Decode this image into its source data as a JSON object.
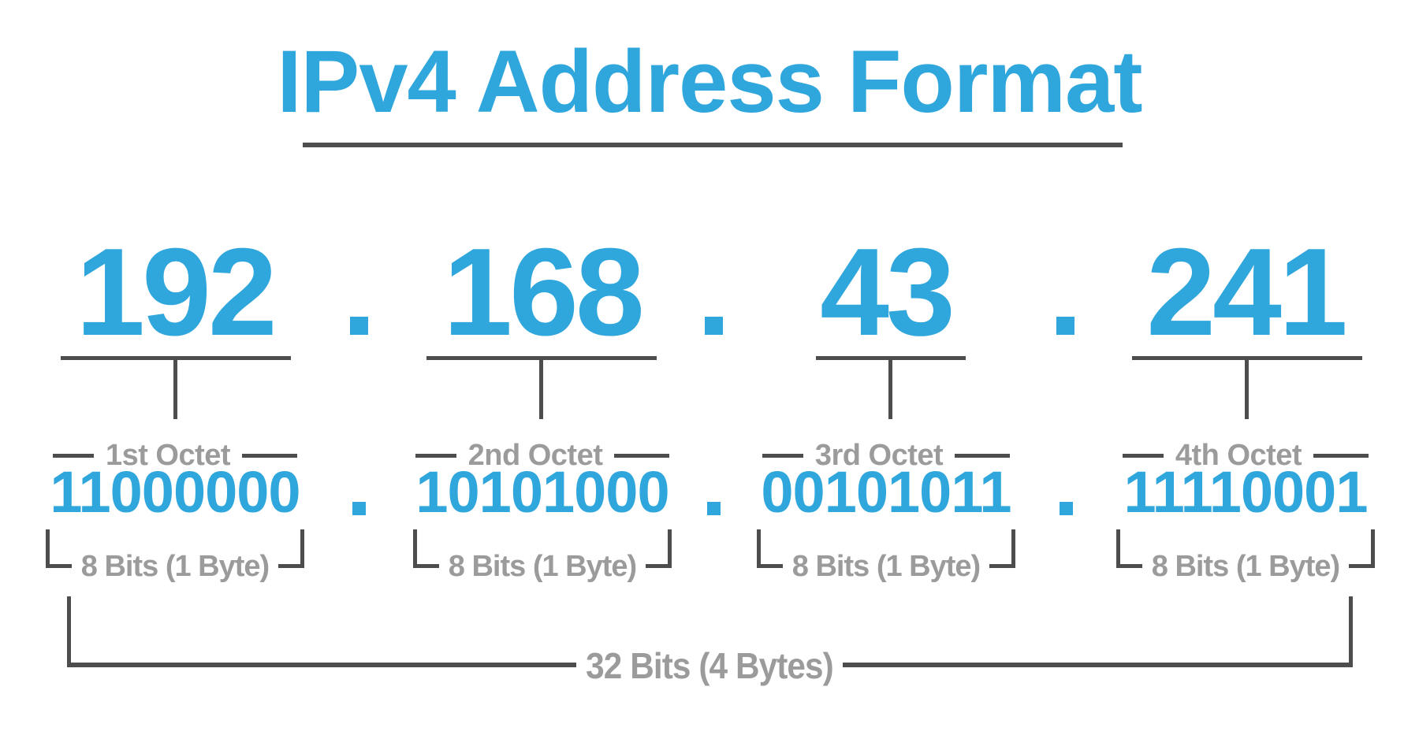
{
  "title": {
    "text": "IPv4 Address Format"
  },
  "separator_glyph": ".",
  "octets": [
    {
      "decimal": "192",
      "ordinal_label": "1st Octet",
      "binary": "11000000",
      "bits_label": "8 Bits (1 Byte)"
    },
    {
      "decimal": "168",
      "ordinal_label": "2nd Octet",
      "binary": "10101000",
      "bits_label": "8 Bits (1 Byte)"
    },
    {
      "decimal": "43",
      "ordinal_label": "3rd Octet",
      "binary": "00101011",
      "bits_label": "8 Bits (1 Byte)"
    },
    {
      "decimal": "241",
      "ordinal_label": "4th Octet",
      "binary": "11110001",
      "bits_label": "8 Bits (1 Byte)"
    }
  ],
  "total_label": "32 Bits (4 Bytes)",
  "colors": {
    "accent_blue": "#2FA6DC",
    "line_dark": "#4D4D4D",
    "label_gray": "#9B9B9B",
    "background": "#FFFFFF"
  }
}
